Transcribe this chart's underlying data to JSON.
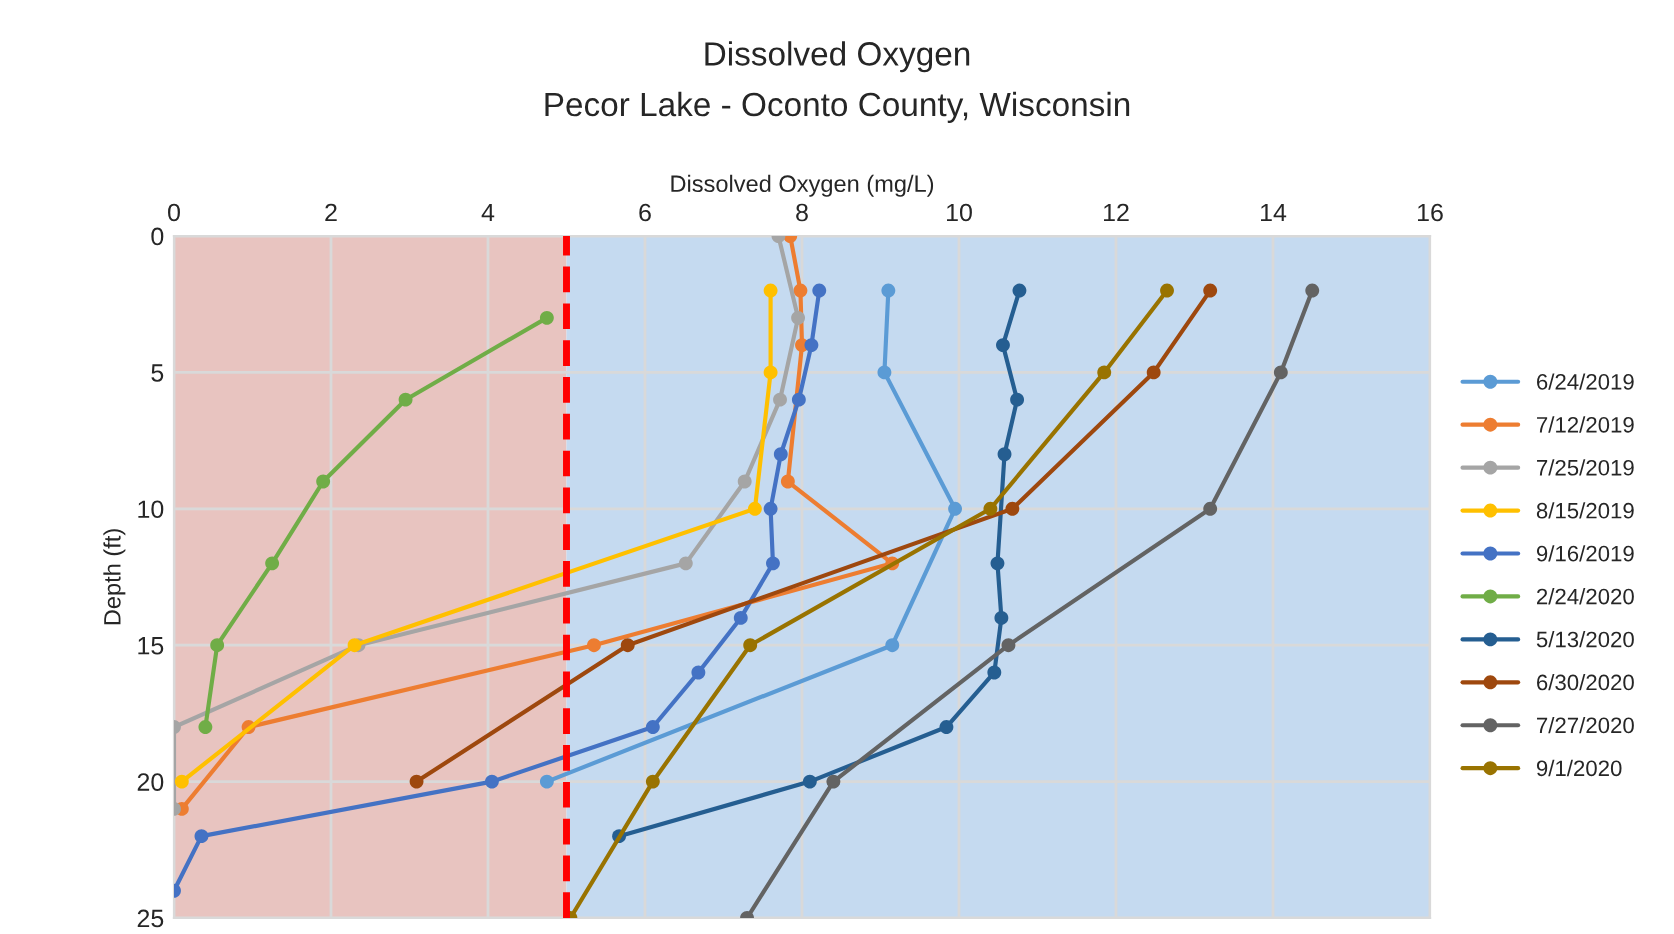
{
  "chart_data": {
    "type": "line",
    "title": "Dissolved Oxygen",
    "subtitle": "Pecor Lake - Oconto County, Wisconsin",
    "xlabel": "Dissolved Oxygen (mg/L)",
    "ylabel": "Depth (ft)",
    "xlim": [
      0,
      16
    ],
    "xticks": [
      0,
      2,
      4,
      6,
      8,
      10,
      12,
      14,
      16
    ],
    "ylim": [
      25,
      0
    ],
    "yticks": [
      0,
      5,
      10,
      15,
      20,
      25
    ],
    "grid": true,
    "legend": "right",
    "marker": "circle",
    "line_style": "solid",
    "ref_lines": [
      {
        "axis": "x",
        "value": 5,
        "color": "#ff0000",
        "line_style": "dashed"
      }
    ],
    "bands": [
      {
        "axis": "x",
        "from": 0,
        "to": 5,
        "color": "#e8c4c0"
      },
      {
        "axis": "x",
        "from": 5,
        "to": 16,
        "color": "#c5daf0"
      }
    ],
    "series": [
      {
        "name": "6/24/2019",
        "color": "#5b9bd5",
        "x": [
          9.1,
          9.05,
          9.95,
          9.15,
          4.75
        ],
        "values": [
          2,
          5,
          10,
          15,
          20
        ]
      },
      {
        "name": "7/12/2019",
        "color": "#ed7d31",
        "x": [
          7.85,
          7.98,
          8.0,
          7.82,
          9.15,
          5.35,
          0.95,
          0.1
        ],
        "values": [
          0,
          2,
          4,
          9,
          12,
          15,
          18,
          21
        ]
      },
      {
        "name": "7/25/2019",
        "color": "#a5a5a5",
        "x": [
          7.7,
          7.95,
          7.72,
          7.27,
          6.52,
          2.35,
          0,
          0
        ],
        "values": [
          0,
          3,
          6,
          9,
          12,
          15,
          18,
          21
        ]
      },
      {
        "name": "8/15/2019",
        "color": "#ffc000",
        "x": [
          7.6,
          7.6,
          7.4,
          2.3,
          0.1
        ],
        "values": [
          2,
          5,
          10,
          15,
          20
        ]
      },
      {
        "name": "9/16/2019",
        "color": "#4472c4",
        "x": [
          8.22,
          8.12,
          7.96,
          7.73,
          7.6,
          7.63,
          7.22,
          6.68,
          6.1,
          4.05,
          0.35,
          0
        ],
        "values": [
          2,
          4,
          6,
          8,
          10,
          12,
          14,
          16,
          18,
          20,
          22,
          24
        ]
      },
      {
        "name": "2/24/2020",
        "color": "#70ad47",
        "x": [
          4.75,
          2.95,
          1.9,
          1.25,
          0.55,
          0.4
        ],
        "values": [
          3,
          6,
          9,
          12,
          15,
          18
        ]
      },
      {
        "name": "5/13/2020",
        "color": "#255e91",
        "x": [
          10.77,
          10.56,
          10.74,
          10.58,
          10.49,
          10.54,
          10.45,
          9.84,
          8.1,
          5.67
        ],
        "values": [
          2,
          4,
          6,
          8,
          12,
          14,
          16,
          18,
          20,
          22
        ]
      },
      {
        "name": "6/30/2020",
        "color": "#9e480e",
        "x": [
          13.2,
          12.48,
          10.68,
          5.78,
          3.09
        ],
        "values": [
          2,
          5,
          10,
          15,
          20
        ]
      },
      {
        "name": "7/27/2020",
        "color": "#636363",
        "x": [
          14.5,
          14.1,
          13.2,
          10.63,
          8.4,
          7.3
        ],
        "values": [
          2,
          5,
          10,
          15,
          20,
          25
        ]
      },
      {
        "name": "9/1/2020",
        "color": "#997300",
        "x": [
          12.65,
          11.85,
          10.4,
          7.34,
          6.1,
          5.05
        ],
        "values": [
          2,
          5,
          10,
          15,
          20,
          25
        ]
      }
    ]
  }
}
